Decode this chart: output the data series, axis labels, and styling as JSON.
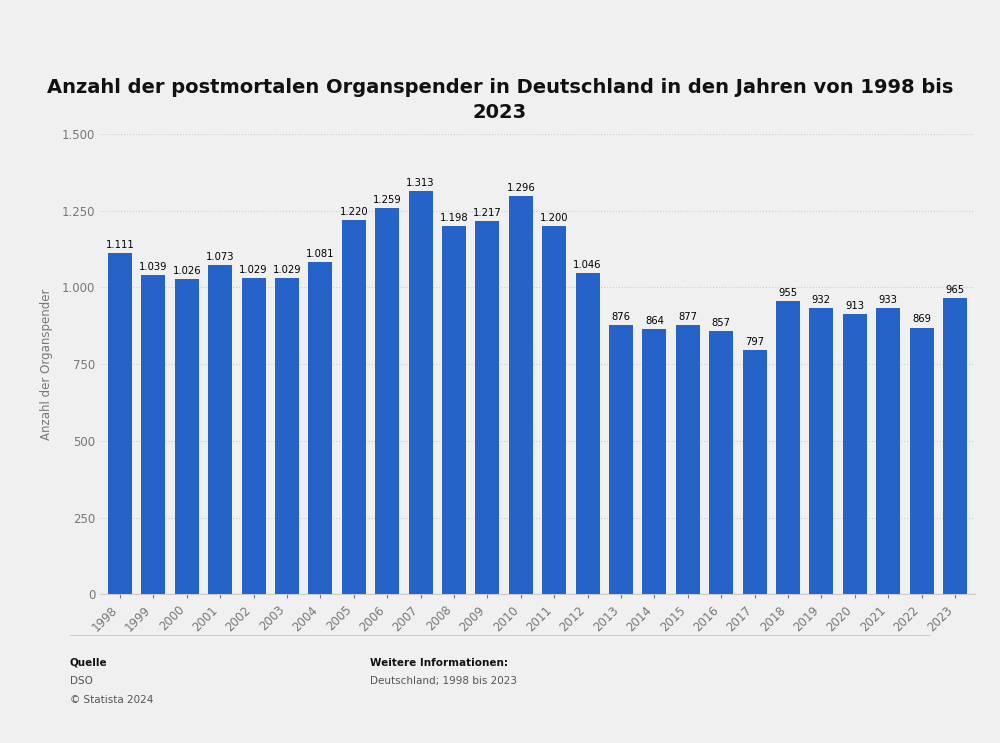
{
  "title": "Anzahl der postmortalen Organspender in Deutschland in den Jahren von 1998 bis\n2023",
  "ylabel": "Anzahl der Organspender",
  "years": [
    "1998",
    "1999",
    "2000",
    "2001",
    "2002",
    "2003",
    "2004",
    "2005",
    "2006",
    "2007",
    "2008",
    "2009",
    "2010",
    "2011",
    "2012",
    "2013",
    "2014",
    "2015",
    "2016",
    "2017",
    "2018",
    "2019",
    "2020",
    "2021",
    "2022",
    "2023"
  ],
  "values": [
    1111,
    1039,
    1026,
    1073,
    1029,
    1029,
    1081,
    1220,
    1259,
    1313,
    1198,
    1217,
    1296,
    1200,
    1046,
    876,
    864,
    877,
    857,
    797,
    955,
    932,
    913,
    933,
    869,
    965
  ],
  "bar_color": "#2563C8",
  "background_color": "#f0f0f0",
  "ylim": [
    0,
    1500
  ],
  "yticks": [
    0,
    250,
    500,
    750,
    1000,
    1250,
    1500
  ],
  "ytick_labels": [
    "0",
    "250",
    "500",
    "750",
    "1.000",
    "1.250",
    "1.500"
  ],
  "source_label": "Quelle",
  "source_value": "DSO",
  "copyright": "© Statista 2024",
  "info_label": "Weitere Informationen:",
  "info_value": "Deutschland; 1998 bis 2023",
  "title_fontsize": 14,
  "label_fontsize": 8.5,
  "bar_label_fontsize": 7.2,
  "axis_label_fontsize": 8.5,
  "footer_fontsize": 7.5
}
